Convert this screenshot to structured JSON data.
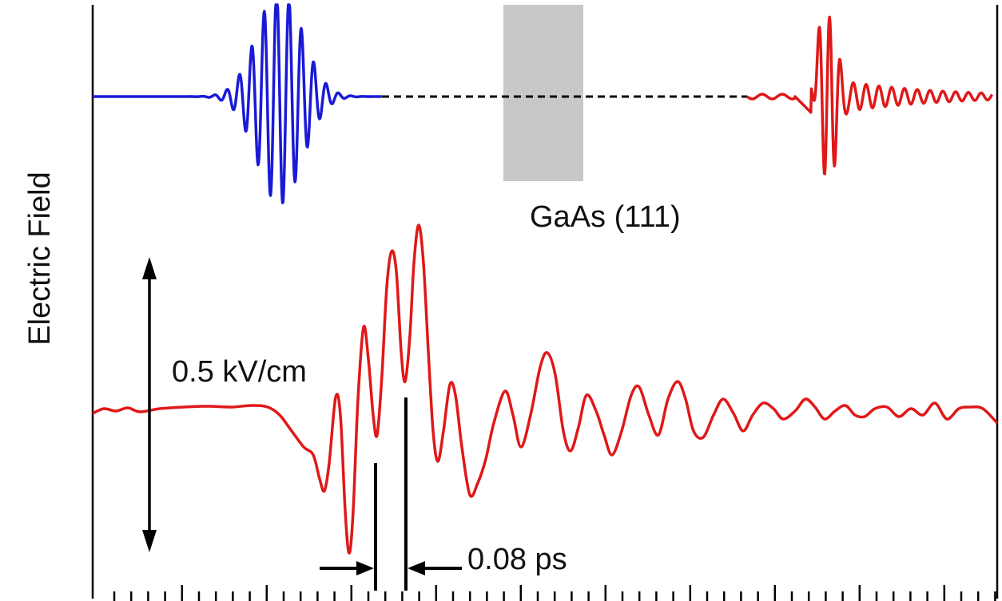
{
  "figure": {
    "ylabel": "Electric Field",
    "sample_label": "GaAs (111)",
    "amplitude_label": "0.5 kV/cm",
    "period_label": "0.08 ps"
  },
  "colors": {
    "incident_pulse": "#1a1ad6",
    "emitted_pulse": "#e01818",
    "sample": "#c8c8c8",
    "axes": "#000000"
  },
  "chart_data": {
    "type": "line",
    "title": "",
    "xlabel": "",
    "ylabel": "Electric Field",
    "grid": false,
    "series": [
      {
        "label": "incident pulse",
        "color": "#1a1ad6"
      },
      {
        "label": "emitted pulse (top)",
        "color": "#e01818"
      },
      {
        "label": "emitted pulse (expanded)",
        "color": "#e01818"
      }
    ],
    "annotations": [
      "GaAs (111)",
      "0.5 kV/cm",
      "0.08 ps"
    ]
  }
}
